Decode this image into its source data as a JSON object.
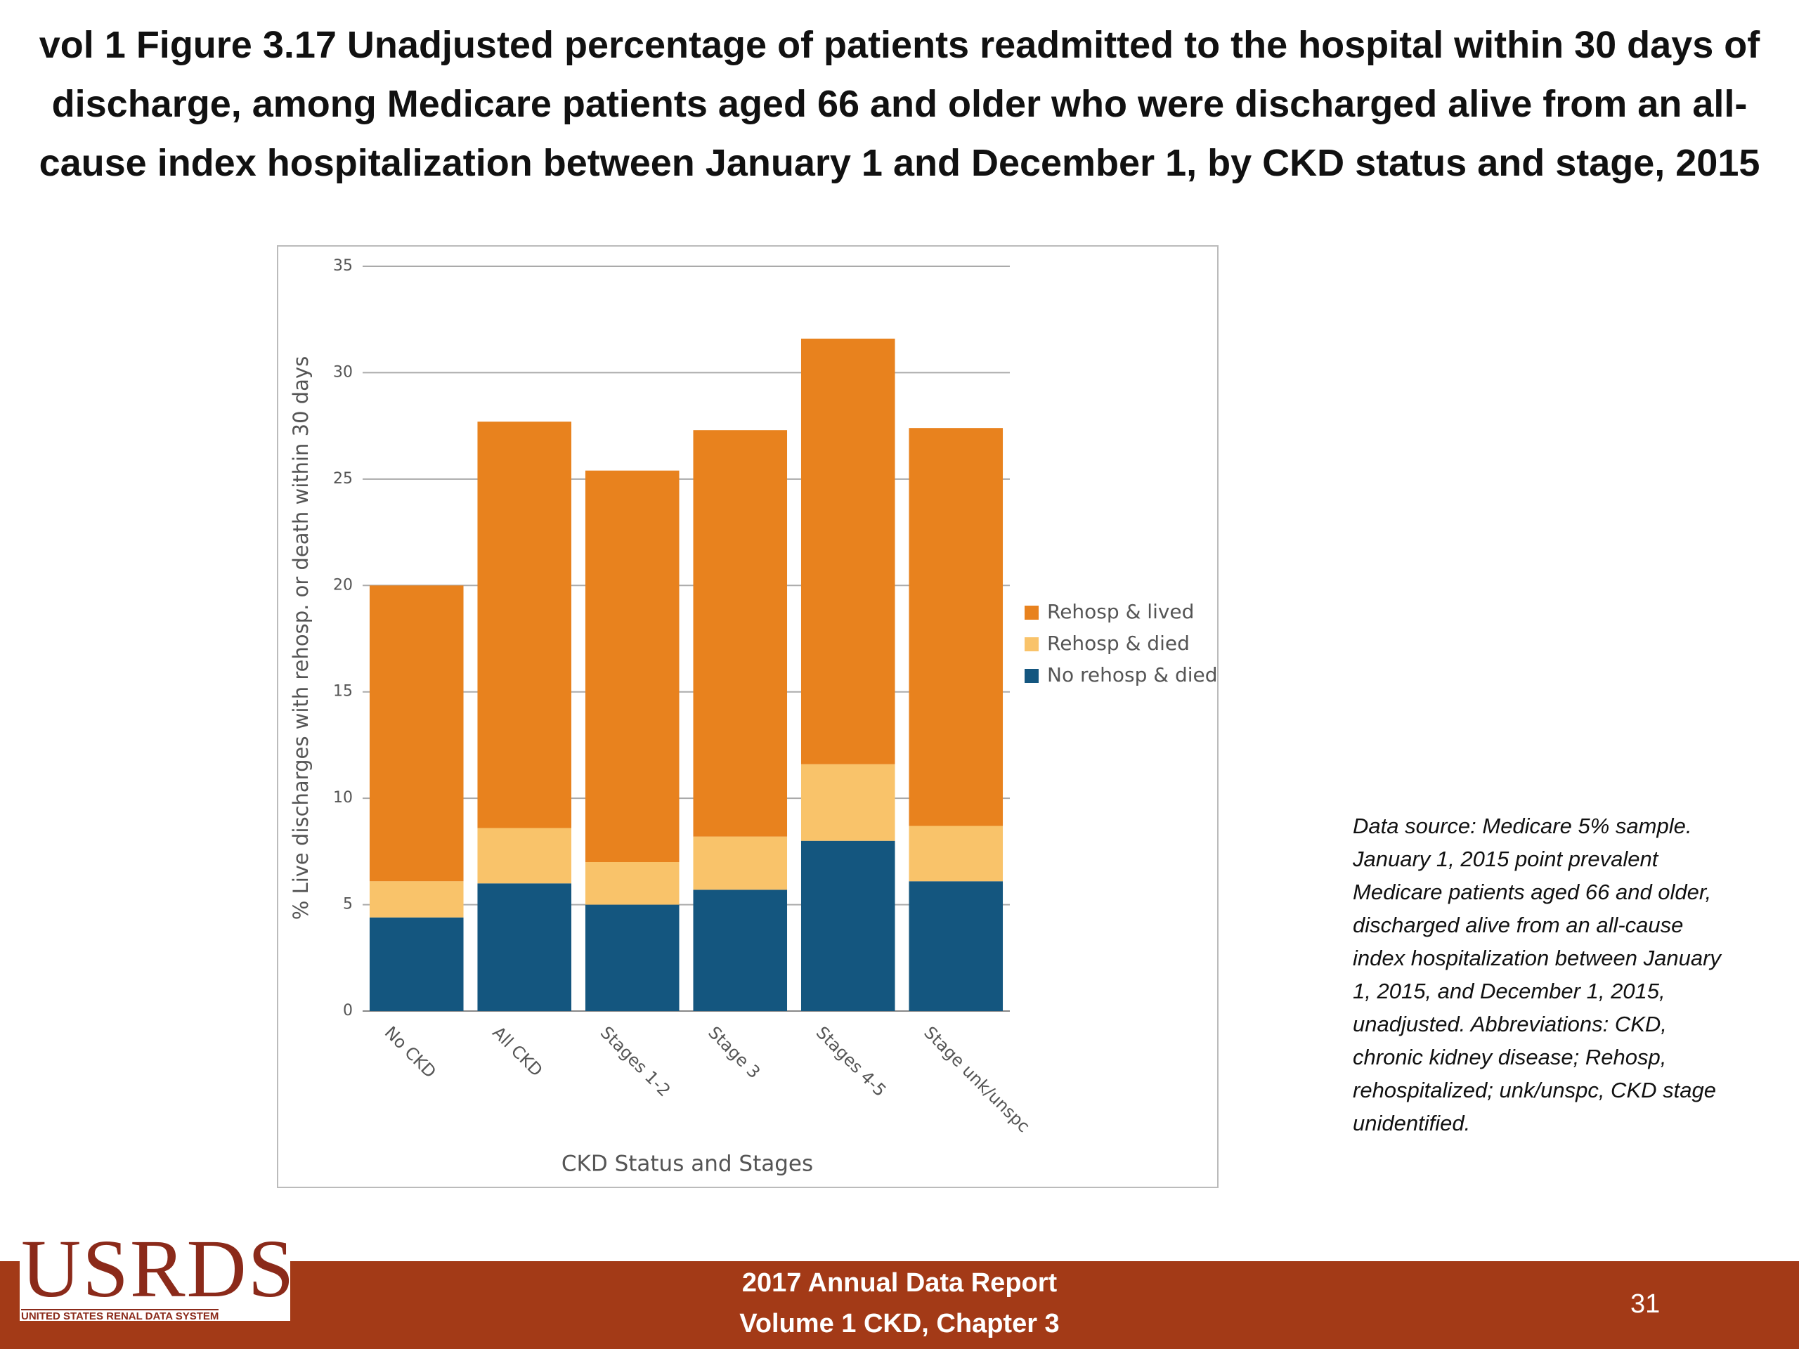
{
  "chart_data": {
    "type": "stacked-bar",
    "title": "vol 1 Figure 3.17 Unadjusted percentage of patients readmitted to the hospital within 30 days of discharge, among Medicare patients aged 66 and older who were discharged alive from an all-cause index hospitalization between January 1 and December 1, by CKD status and stage, 2015",
    "x_label": "CKD Status and Stages",
    "y_label": "% Live discharges with rehosp. or death within 30 days",
    "categories": [
      "No CKD",
      "All CKD",
      "Stages 1-2",
      "Stage 3",
      "Stages 4-5",
      "Stage unk/unspc"
    ],
    "series": [
      {
        "name": "No rehosp & died",
        "color": "#14567f",
        "values": [
          4.4,
          6.0,
          5.0,
          5.7,
          8.0,
          6.1
        ]
      },
      {
        "name": "Rehosp & died",
        "color": "#f9c36a",
        "values": [
          1.7,
          2.6,
          2.0,
          2.5,
          3.6,
          2.6
        ]
      },
      {
        "name": "Rehosp & lived",
        "color": "#e8821e",
        "values": [
          13.9,
          19.1,
          18.4,
          19.1,
          20.0,
          18.7
        ]
      }
    ],
    "ylim": [
      0,
      35
    ],
    "yticks": [
      0,
      5,
      10,
      15,
      20,
      25,
      30,
      35
    ],
    "grid": true,
    "legend": "right"
  },
  "note": "Data source: Medicare 5% sample. January 1, 2015 point prevalent Medicare patients aged 66 and older, discharged alive from an all-cause index hospitalization between January 1, 2015, and December 1, 2015, unadjusted. Abbreviations: CKD, chronic kidney disease; Rehosp, rehospitalized; unk/unspc, CKD stage unidentified.",
  "logo": {
    "name": "USRDS",
    "subtitle": "UNITED STATES RENAL DATA SYSTEM"
  },
  "footer": {
    "line1": "2017 Annual Data Report",
    "line2": "Volume 1 CKD, Chapter 3",
    "page": "31"
  }
}
